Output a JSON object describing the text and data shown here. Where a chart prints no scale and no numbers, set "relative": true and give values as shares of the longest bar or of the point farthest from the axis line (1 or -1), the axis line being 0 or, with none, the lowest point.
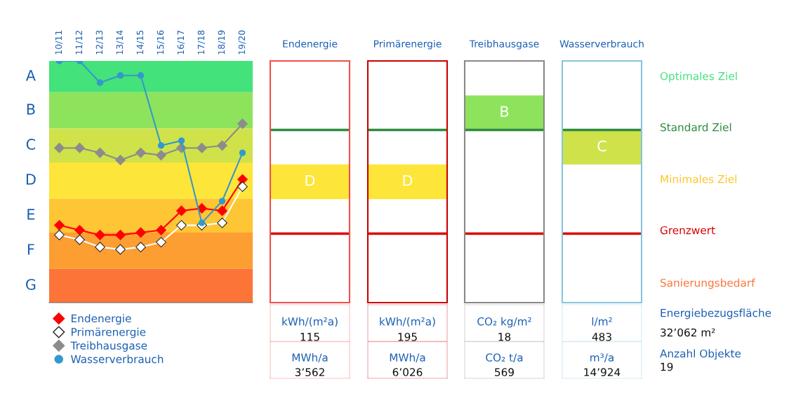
{
  "chart_data": [
    {
      "type": "line",
      "relative": true,
      "categories": [
        "10/11",
        "11/12",
        "12/13",
        "13/14",
        "14/15",
        "15/16",
        "16/17",
        "17/18",
        "18/19",
        "19/20"
      ],
      "bands": [
        {
          "axis": "y",
          "from": 0.87,
          "to": 1,
          "label": "A",
          "color": "#44e27a"
        },
        {
          "axis": "y",
          "from": 0.72,
          "to": 0.87,
          "label": "B",
          "color": "#8ee35c"
        },
        {
          "axis": "y",
          "from": 0.58,
          "to": 0.72,
          "label": "C",
          "color": "#cfe24a"
        },
        {
          "axis": "y",
          "from": 0.43,
          "to": 0.58,
          "label": "D",
          "color": "#fde53a"
        },
        {
          "axis": "y",
          "from": 0.29,
          "to": 0.43,
          "label": "E",
          "color": "#fec534"
        },
        {
          "axis": "y",
          "from": 0.14,
          "to": 0.29,
          "label": "F",
          "color": "#fd9e32"
        },
        {
          "axis": "y",
          "from": 0,
          "to": 0.14,
          "label": "G",
          "color": "#fd7438"
        }
      ],
      "series": [
        {
          "name": "Endenergie",
          "color": "#ff0000",
          "marker": "diamond",
          "values": [
            0.32,
            0.3,
            0.28,
            0.28,
            0.29,
            0.3,
            0.38,
            0.39,
            0.38,
            0.51
          ]
        },
        {
          "name": "Primärenergie",
          "color": "#ffffff",
          "marker": "diamond",
          "values": [
            0.28,
            0.26,
            0.23,
            0.22,
            0.23,
            0.25,
            0.32,
            0.32,
            0.33,
            0.48
          ]
        },
        {
          "name": "Treibhausgase",
          "color": "#8c8c8c",
          "marker": "diamond",
          "values": [
            0.64,
            0.64,
            0.62,
            0.59,
            0.62,
            0.61,
            0.64,
            0.64,
            0.65,
            0.74
          ]
        },
        {
          "name": "Wasserverbrauch",
          "color": "#3399cc",
          "marker": "circle",
          "values": [
            1,
            1,
            0.91,
            0.94,
            0.94,
            0.65,
            0.67,
            0.33,
            0.42,
            0.62
          ]
        }
      ],
      "legend": "bottom"
    },
    {
      "type": "other",
      "title": "Endenergie",
      "color": "#f0504a",
      "categories": [
        null,
        null,
        null,
        "D",
        null,
        null,
        null
      ],
      "colors": [
        null,
        null,
        null,
        "#fde53a",
        null,
        null,
        null
      ],
      "annotations": [
        "kWh/(m²a)",
        "115",
        "MWh/a",
        "3’562"
      ]
    },
    {
      "type": "other",
      "title": "Primärenergie",
      "color": "#cc0000",
      "categories": [
        null,
        null,
        null,
        "D",
        null,
        null,
        null
      ],
      "colors": [
        null,
        null,
        null,
        "#fde53a",
        null,
        null,
        null
      ],
      "annotations": [
        "kWh/(m²a)",
        "195",
        "MWh/a",
        "6’026"
      ]
    },
    {
      "type": "other",
      "title": "Treibhausgase",
      "color": "#888888",
      "categories": [
        null,
        "B",
        null,
        null,
        null,
        null,
        null
      ],
      "colors": [
        null,
        "#8ee35c",
        null,
        null,
        null,
        null,
        null
      ],
      "annotations": [
        "CO₂ kg/m²",
        "18",
        "CO₂ t/a",
        "569"
      ]
    },
    {
      "type": "other",
      "title": "Wasserverbrauch",
      "color": "#88c4e0",
      "categories": [
        null,
        null,
        "C",
        null,
        null,
        null,
        null
      ],
      "colors": [
        null,
        null,
        "#cfe24a",
        null,
        null,
        null,
        null
      ],
      "annotations": [
        "l/m²",
        "483",
        "m³/a",
        "14’924"
      ]
    },
    {
      "type": "other",
      "annotations": [
        "Optimales Ziel",
        "Standard Ziel",
        "Minimales Ziel",
        "Grenzwert",
        "Sanierungsbedarf",
        "Energiebezugsfläche",
        "32’062 m²",
        "Anzahl Objekte",
        "19"
      ],
      "colors": [
        "#44e27a",
        "#2e8b3e",
        "#fdc52a",
        "#dd0000",
        "#fd7438",
        "#1a5fb4",
        "#111111",
        "#1a5fb4",
        "#111111"
      ]
    }
  ]
}
